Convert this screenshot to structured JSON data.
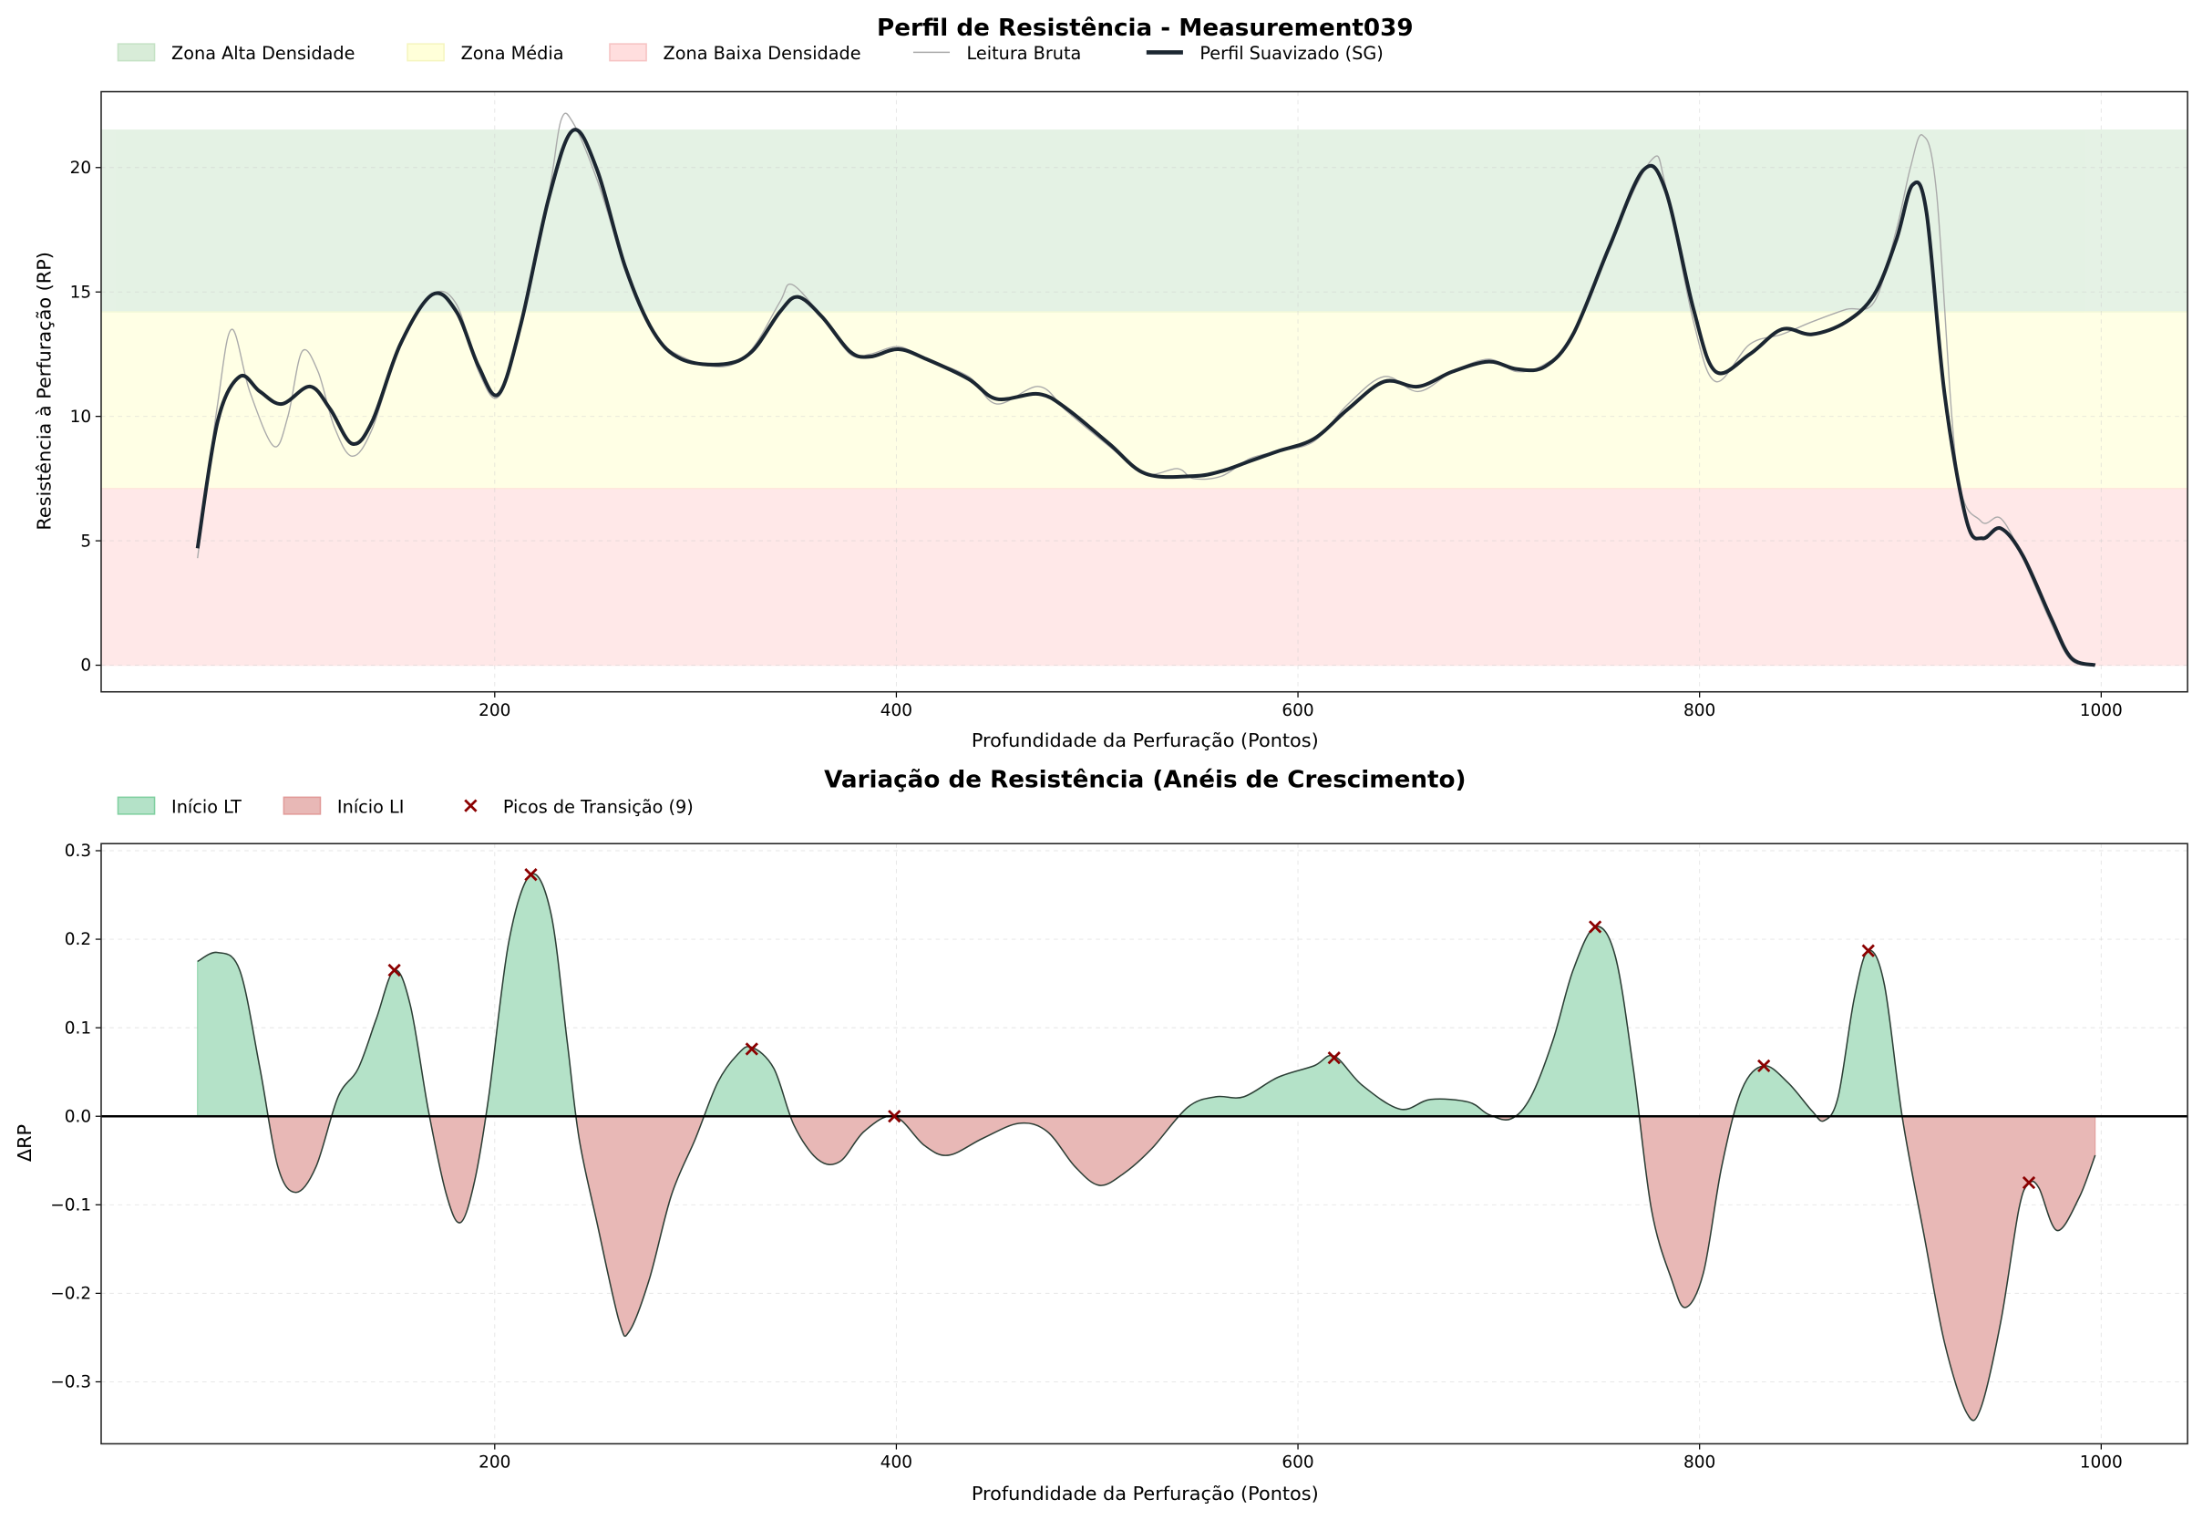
{
  "chart_data": [
    {
      "type": "line",
      "title": "Perfil de Resistência - Measurement039",
      "xlabel": "Profundidade da Perfuração (Pontos)",
      "ylabel": "Resistência à Perfuração (RP)",
      "xlim": [
        4,
        1043
      ],
      "ylim": [
        -1.07,
        23.05
      ],
      "xticks": [
        200,
        400,
        600,
        800,
        1000
      ],
      "yticks": [
        0,
        5,
        10,
        15,
        20
      ],
      "grid": true,
      "legend_position": "top-left, outside",
      "legend": [
        "Zona Alta Densidade",
        "Zona Média",
        "Zona Baixa Densidade",
        "Leitura Bruta",
        "Perfil Suavizado (SG)"
      ],
      "zones": [
        {
          "name": "Zona Alta Densidade",
          "from": 14.2,
          "to": 21.5,
          "color": "#cfe8cf"
        },
        {
          "name": "Zona Média",
          "from": 7.1,
          "to": 14.2,
          "color": "#ffffd0"
        },
        {
          "name": "Zona Baixa Densidade",
          "from": 0,
          "to": 7.1,
          "color": "#ffd6d6"
        }
      ],
      "series": [
        {
          "name": "Perfil Suavizado (SG)",
          "color": "#1b2631",
          "x": [
            52,
            62,
            73,
            83,
            94,
            108,
            118,
            129,
            139,
            153,
            169,
            181,
            192,
            202,
            213,
            227,
            239,
            251,
            265,
            279,
            293,
            314,
            328,
            342,
            351,
            363,
            377,
            387,
            401,
            415,
            436,
            450,
            471,
            485,
            506,
            524,
            548,
            562,
            576,
            590,
            608,
            625,
            643,
            660,
            677,
            695,
            709,
            723,
            737,
            755,
            772,
            783,
            797,
            808,
            825,
            841,
            856,
            873,
            887,
            898,
            906,
            913,
            922,
            933,
            941,
            950,
            961,
            975,
            985,
            997
          ],
          "y": [
            4.7,
            9.8,
            11.6,
            11.0,
            10.5,
            11.2,
            10.3,
            8.9,
            9.8,
            12.9,
            14.9,
            14.2,
            12.0,
            10.9,
            13.7,
            18.8,
            21.5,
            19.9,
            16.0,
            13.4,
            12.3,
            12.1,
            12.6,
            14.2,
            14.8,
            14.0,
            12.6,
            12.4,
            12.7,
            12.3,
            11.5,
            10.7,
            10.9,
            10.3,
            8.9,
            7.7,
            7.6,
            7.8,
            8.2,
            8.6,
            9.1,
            10.3,
            11.4,
            11.2,
            11.8,
            12.2,
            11.9,
            12.0,
            13.3,
            16.8,
            19.9,
            19.1,
            14.3,
            11.8,
            12.5,
            13.5,
            13.3,
            13.8,
            14.9,
            17.1,
            19.3,
            18.2,
            10.9,
            5.8,
            5.1,
            5.5,
            4.4,
            1.9,
            0.3,
            0.0
          ]
        },
        {
          "name": "Leitura Bruta",
          "color": "#aaaaaa",
          "x": [
            52,
            62,
            69,
            78,
            90,
            97,
            104,
            112,
            120,
            129,
            139,
            153,
            169,
            181,
            192,
            202,
            213,
            227,
            233,
            239,
            251,
            265,
            279,
            293,
            314,
            328,
            342,
            348,
            363,
            377,
            387,
            401,
            415,
            436,
            450,
            471,
            485,
            506,
            524,
            540,
            548,
            562,
            576,
            590,
            608,
            625,
            643,
            660,
            677,
            695,
            709,
            723,
            737,
            755,
            776,
            783,
            797,
            808,
            825,
            841,
            856,
            873,
            887,
            898,
            905,
            911,
            918,
            928,
            940,
            950,
            961,
            975,
            985,
            997
          ],
          "y": [
            4.3,
            10.5,
            13.5,
            11.0,
            8.8,
            10.0,
            12.6,
            11.8,
            9.6,
            8.4,
            9.5,
            12.9,
            14.9,
            14.5,
            11.8,
            10.8,
            13.6,
            19.0,
            21.9,
            21.8,
            19.5,
            16.0,
            13.4,
            12.4,
            12.0,
            12.7,
            14.6,
            15.3,
            14.0,
            12.5,
            12.5,
            12.8,
            12.3,
            11.6,
            10.5,
            11.2,
            10.2,
            8.8,
            7.7,
            7.9,
            7.5,
            7.6,
            8.3,
            8.6,
            9.0,
            10.5,
            11.6,
            11.0,
            11.8,
            12.3,
            11.8,
            12.1,
            13.2,
            16.9,
            20.3,
            19.3,
            13.8,
            11.4,
            12.9,
            13.3,
            13.8,
            14.3,
            14.6,
            17.5,
            20.0,
            21.3,
            19.0,
            8.0,
            5.8,
            5.9,
            4.3,
            1.7,
            0.2,
            0.0
          ]
        }
      ]
    },
    {
      "type": "area",
      "title": "Variação de Resistência (Anéis de Crescimento)",
      "xlabel": "Profundidade da Perfuração (Pontos)",
      "ylabel": "ΔRP",
      "xlim": [
        4,
        1043
      ],
      "ylim": [
        -0.37,
        0.308
      ],
      "xticks": [
        200,
        400,
        600,
        800,
        1000
      ],
      "yticks": [
        -0.3,
        -0.2,
        -0.1,
        0.0,
        0.1,
        0.2,
        0.3
      ],
      "ytick_labels": [
        "−0.3",
        "−0.2",
        "−0.1",
        "0.0",
        "0.1",
        "0.2",
        "0.3"
      ],
      "grid": true,
      "legend_position": "top-left, outside",
      "legend": [
        "Início LT",
        "Início LI",
        "Picos de Transição (9)"
      ],
      "colors": {
        "positive": "#b4e2c8",
        "negative": "#e8b8b6",
        "peaks": "#8b0000",
        "line": "#2c3e35"
      },
      "series": [
        {
          "name": "ΔRP",
          "x": [
            52,
            62,
            73,
            83,
            92,
            101,
            111,
            122,
            132,
            141,
            150,
            158,
            167,
            176,
            183,
            190,
            197,
            207,
            218,
            228,
            236,
            242,
            251,
            262,
            267,
            277,
            288,
            300,
            311,
            321,
            328,
            339,
            349,
            361,
            372,
            384,
            399,
            414,
            426,
            443,
            461,
            475,
            489,
            501,
            513,
            527,
            545,
            559,
            573,
            590,
            608,
            618,
            632,
            651,
            666,
            685,
            695,
            706,
            716,
            727,
            737,
            748,
            758,
            767,
            776,
            786,
            793,
            802,
            811,
            821,
            832,
            844,
            856,
            862,
            869,
            877,
            884,
            892,
            901,
            912,
            922,
            933,
            940,
            950,
            959,
            964,
            969,
            978,
            989,
            997
          ],
          "y": [
            0.175,
            0.185,
            0.165,
            0.055,
            -0.057,
            -0.086,
            -0.057,
            0.022,
            0.054,
            0.11,
            0.165,
            0.125,
            0.006,
            -0.089,
            -0.12,
            -0.073,
            0.022,
            0.197,
            0.273,
            0.229,
            0.086,
            -0.025,
            -0.121,
            -0.232,
            -0.243,
            -0.184,
            -0.089,
            -0.025,
            0.038,
            0.07,
            0.078,
            0.054,
            -0.01,
            -0.049,
            -0.051,
            -0.017,
            0.0,
            -0.033,
            -0.044,
            -0.025,
            -0.008,
            -0.017,
            -0.057,
            -0.078,
            -0.065,
            -0.037,
            0.01,
            0.022,
            0.022,
            0.044,
            0.057,
            0.068,
            0.035,
            0.008,
            0.019,
            0.016,
            0.002,
            -0.003,
            0.022,
            0.086,
            0.165,
            0.214,
            0.181,
            0.054,
            -0.105,
            -0.184,
            -0.216,
            -0.176,
            -0.057,
            0.03,
            0.057,
            0.038,
            0.006,
            -0.005,
            0.022,
            0.133,
            0.187,
            0.149,
            -0.002,
            -0.137,
            -0.256,
            -0.335,
            -0.33,
            -0.232,
            -0.105,
            -0.076,
            -0.081,
            -0.129,
            -0.092,
            -0.044
          ]
        },
        {
          "name": "Picos de Transição (9)",
          "x": [
            150,
            218,
            328,
            399,
            618,
            748,
            832,
            884,
            964
          ],
          "y": [
            0.165,
            0.273,
            0.076,
            0.0,
            0.066,
            0.214,
            0.057,
            0.187,
            -0.075
          ]
        }
      ]
    }
  ]
}
